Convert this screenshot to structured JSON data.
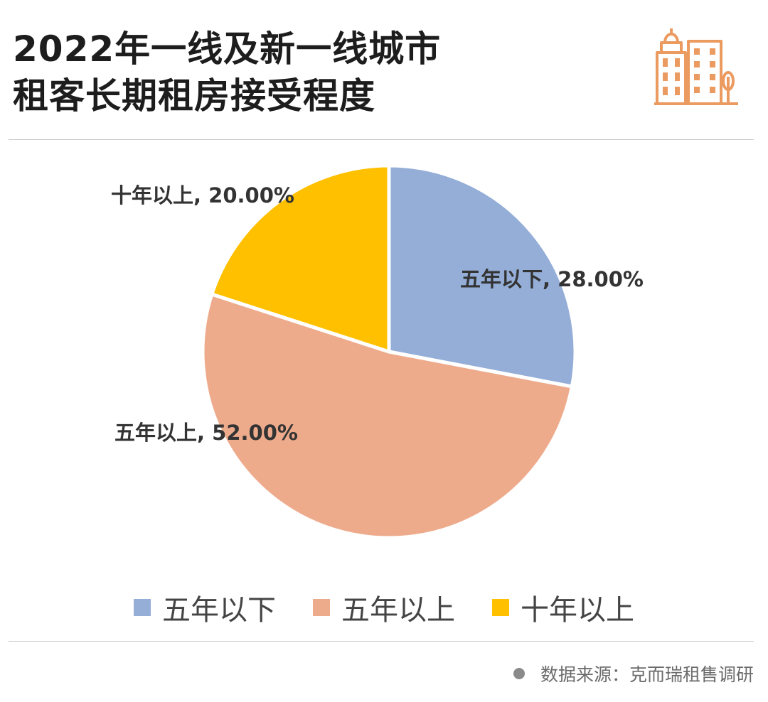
{
  "header": {
    "title_line1": "2022年一线及新一线城市",
    "title_line2": "租客长期租房接受程度"
  },
  "colors": {
    "accent": "#ec9b60",
    "text": "#1d1d1d",
    "divider": "#c9c9c9"
  },
  "chart_data": {
    "type": "pie",
    "slices": [
      {
        "label": "五年以下",
        "value": 28.0,
        "display": "五年以下, 28.00%",
        "color": "#94aed8"
      },
      {
        "label": "五年以上",
        "value": 52.0,
        "display": "五年以上, 52.00%",
        "color": "#eeab8c"
      },
      {
        "label": "十年以上",
        "value": 20.0,
        "display": "十年以上, 20.00%",
        "color": "#ffc000"
      }
    ],
    "start_angle_deg": 0,
    "direction": "clockwise",
    "legend_position": "bottom"
  },
  "footer": {
    "source": "数据来源：克而瑞租售调研"
  }
}
